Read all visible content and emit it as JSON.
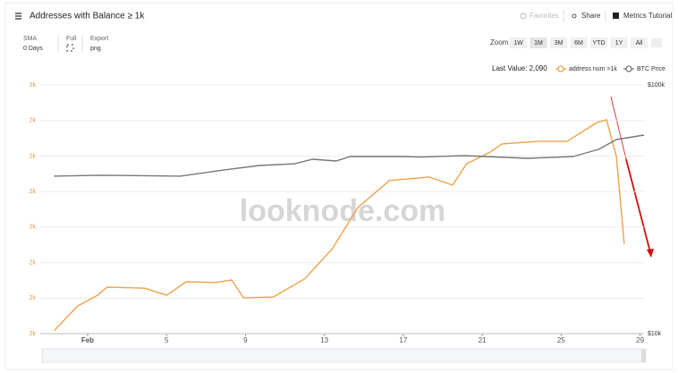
{
  "header": {
    "title": "Addresses with Balance ≥ 1k",
    "favorites": "Favorites",
    "share": "Share",
    "tutorial": "Metrics Tutorial"
  },
  "controls": {
    "sma": "SMA",
    "sma_value": "0 Days",
    "full": "Full",
    "export": "Export",
    "export_value": "png",
    "zoom": "Zoom",
    "zoom_options": [
      "1W",
      "1M",
      "3M",
      "6M",
      "YTD",
      "1Y",
      "All"
    ],
    "last_value": "Last Value: 2,090"
  },
  "watermark": "looknode.com",
  "chart_data": {
    "type": "line",
    "y2_log": true,
    "grid": true,
    "xlim": [
      -1.4,
      29.2
    ],
    "xticks": [
      {
        "value": 1,
        "label": "Feb"
      },
      5,
      9,
      13,
      17,
      21,
      25,
      29
    ],
    "ylim": [
      2065,
      2135
    ],
    "yticks": [
      {
        "value": 2065,
        "label": "2k"
      },
      {
        "value": 2075,
        "label": "2k"
      },
      {
        "value": 2085,
        "label": "2k"
      },
      {
        "value": 2095,
        "label": "2k"
      },
      {
        "value": 2105,
        "label": "2k"
      },
      {
        "value": 2115,
        "label": "2k"
      },
      {
        "value": 2125,
        "label": "2k"
      },
      {
        "value": 2135,
        "label": "2k"
      }
    ],
    "y2lim": [
      10000,
      100000
    ],
    "y2ticks": [
      {
        "value": 10000,
        "label": "$10k"
      },
      {
        "value": 100000,
        "label": "$100k"
      }
    ],
    "series": [
      {
        "name": "address num >1k",
        "color": "#eea24a",
        "x": [
          -0.7,
          0.5,
          1.5,
          2.0,
          3.9,
          5.0,
          6.0,
          7.5,
          8.3,
          8.9,
          10.4,
          12.0,
          13.4,
          14.7,
          16.3,
          18.3,
          19.5,
          20.2,
          21.4,
          22.0,
          23.8,
          25.3,
          26.8,
          27.3,
          27.8,
          28.2
        ],
        "values": [
          2065.8,
          2072.8,
          2075.8,
          2078.1,
          2077.8,
          2075.8,
          2079.6,
          2079.4,
          2080.1,
          2075.1,
          2075.3,
          2080.4,
          2088.9,
          2100.5,
          2108.1,
          2109.1,
          2106.8,
          2112.8,
          2116.1,
          2118.4,
          2119.1,
          2119.1,
          2124.4,
          2125.2,
          2114.9,
          2090.2
        ]
      },
      {
        "name": "BTC Price",
        "color": "#777777",
        "axis": "y2",
        "x": [
          -0.7,
          1.6,
          5.7,
          7.9,
          9.7,
          11.5,
          12.4,
          13.6,
          14.3,
          17.0,
          17.9,
          20.1,
          23.3,
          25.6,
          26.9,
          27.8,
          29.2
        ],
        "values": [
          43000,
          43350,
          43000,
          45500,
          47450,
          48200,
          50300,
          49450,
          51550,
          51550,
          51300,
          52000,
          50700,
          51550,
          55100,
          60350,
          62900
        ]
      }
    ]
  }
}
